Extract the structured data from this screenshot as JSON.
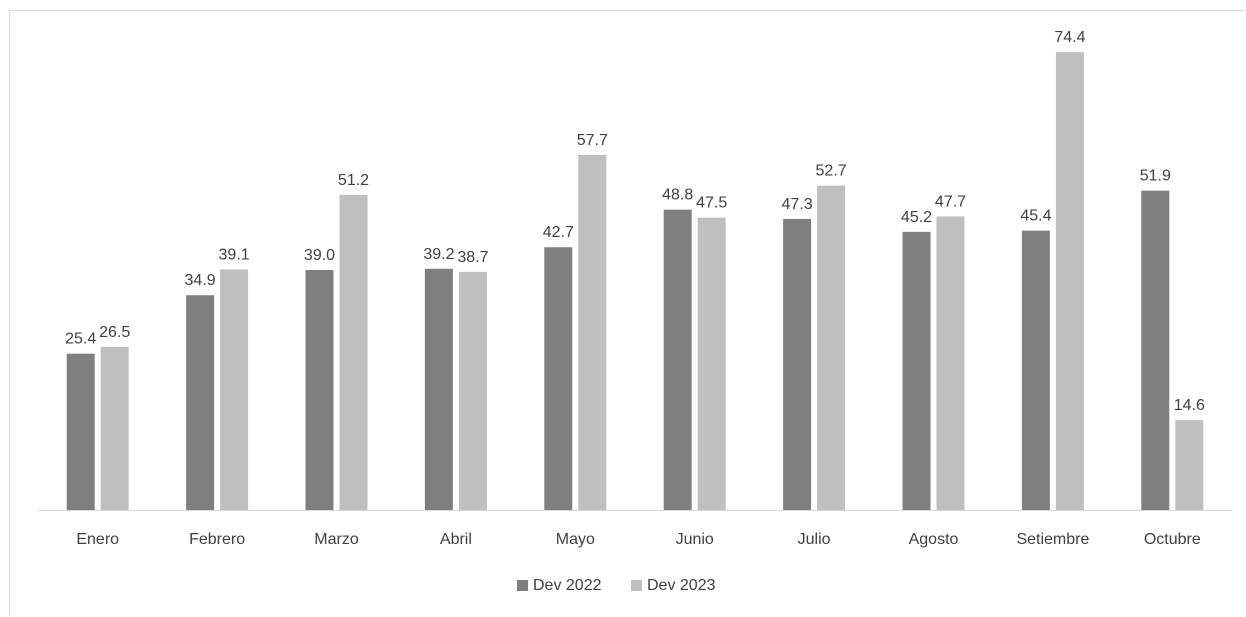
{
  "chart_data": {
    "type": "bar",
    "categories": [
      "Enero",
      "Febrero",
      "Marzo",
      "Abril",
      "Mayo",
      "Junio",
      "Julio",
      "Agosto",
      "Setiembre",
      "Octubre"
    ],
    "series": [
      {
        "name": "Dev 2022",
        "color": "#7f7f7f",
        "values": [
          25.4,
          34.9,
          39.0,
          39.2,
          42.7,
          48.8,
          47.3,
          45.2,
          45.4,
          51.9
        ],
        "labels": [
          "25.4",
          "34.9",
          "39.0",
          "39.2",
          "42.7",
          "48.8",
          "47.3",
          "45.2",
          "45.4",
          "51.9"
        ]
      },
      {
        "name": "Dev 2023",
        "color": "#bfbfbf",
        "values": [
          26.5,
          39.1,
          51.2,
          38.7,
          57.7,
          47.5,
          52.7,
          47.7,
          74.4,
          14.6
        ],
        "labels": [
          "26.5",
          "39.1",
          "51.2",
          "38.7",
          "57.7",
          "47.5",
          "52.7",
          "47.7",
          "74.4",
          "14.6"
        ]
      }
    ],
    "ylim": [
      0,
      78
    ],
    "grid": false,
    "legend": "bottom-center",
    "axis_color": "#d9d9d9"
  }
}
